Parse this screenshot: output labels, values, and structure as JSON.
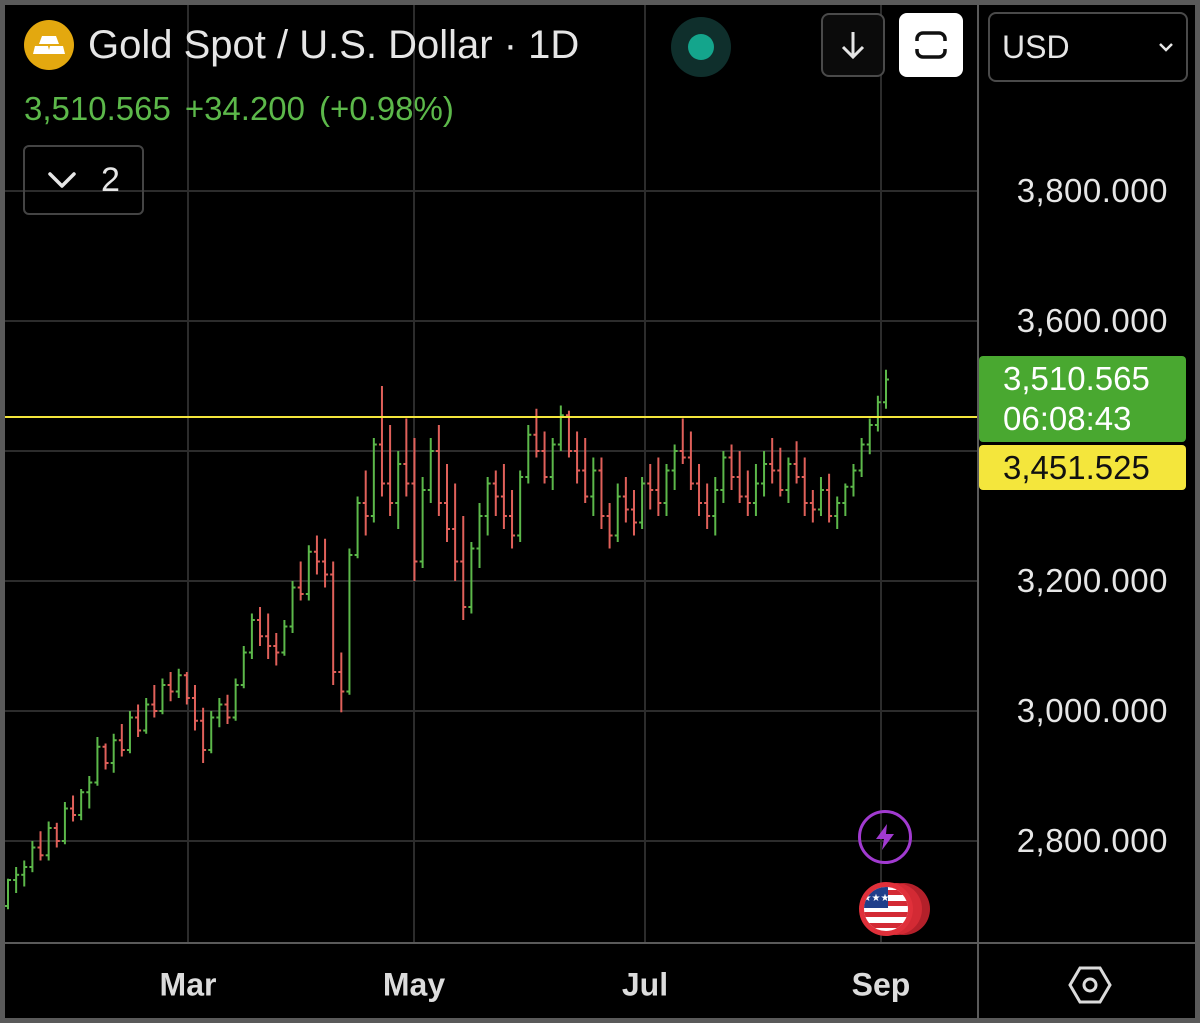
{
  "header": {
    "symbol_icon": "gold-bars-icon",
    "title": "Gold Spot / U.S. Dollar · 1D",
    "last_price": "3,510.565",
    "change": "+34.200",
    "change_pct": "(+0.98%)",
    "indicators_count": "2",
    "currency": "USD",
    "live_indicator_color": "#14a58c"
  },
  "toolbar": {
    "download_icon": "arrow-down-icon",
    "fit_icon": "fit-screen-icon",
    "settings_icon": "settings-hexagon-icon"
  },
  "price_tags": {
    "last_price": "3,510.565",
    "countdown": "06:08:43",
    "level": "3,451.525"
  },
  "colors": {
    "up": "#5cb84a",
    "down": "#e0605a",
    "level_line": "#f4e63c",
    "last_price_bg": "#49a830"
  },
  "chart_data": {
    "type": "ohlc",
    "x_ticks": [
      "Mar",
      "May",
      "Jul",
      "Sep"
    ],
    "y_ticks": [
      "2,800.000",
      "3,000.000",
      "3,200.000",
      "3,600.000",
      "3,800.000"
    ],
    "ylim": [
      2665,
      3890
    ],
    "horizontal_line": 3451.525,
    "grid": true,
    "series": [
      {
        "bars": [
          [
            2700,
            2742,
            2695,
            2740
          ],
          [
            2740,
            2760,
            2720,
            2748
          ],
          [
            2748,
            2770,
            2730,
            2760
          ],
          [
            2760,
            2800,
            2752,
            2790
          ],
          [
            2790,
            2815,
            2770,
            2778
          ],
          [
            2778,
            2830,
            2770,
            2820
          ],
          [
            2820,
            2828,
            2790,
            2800
          ],
          [
            2800,
            2860,
            2795,
            2850
          ],
          [
            2850,
            2870,
            2830,
            2840
          ],
          [
            2840,
            2880,
            2832,
            2875
          ],
          [
            2875,
            2900,
            2850,
            2890
          ],
          [
            2890,
            2960,
            2885,
            2945
          ],
          [
            2945,
            2950,
            2910,
            2920
          ],
          [
            2920,
            2965,
            2905,
            2955
          ],
          [
            2955,
            2980,
            2930,
            2940
          ],
          [
            2940,
            3000,
            2935,
            2990
          ],
          [
            2990,
            3010,
            2960,
            2970
          ],
          [
            2970,
            3020,
            2965,
            3010
          ],
          [
            3010,
            3040,
            2990,
            3000
          ],
          [
            3000,
            3050,
            2995,
            3040
          ],
          [
            3040,
            3060,
            3015,
            3030
          ],
          [
            3030,
            3065,
            3020,
            3055
          ],
          [
            3055,
            3060,
            3010,
            3020
          ],
          [
            3020,
            3040,
            2970,
            2985
          ],
          [
            2985,
            3005,
            2920,
            2940
          ],
          [
            2940,
            3000,
            2935,
            2990
          ],
          [
            2990,
            3020,
            2975,
            3010
          ],
          [
            3010,
            3025,
            2980,
            2990
          ],
          [
            2990,
            3050,
            2985,
            3040
          ],
          [
            3040,
            3100,
            3035,
            3090
          ],
          [
            3090,
            3150,
            3080,
            3140
          ],
          [
            3140,
            3160,
            3100,
            3115
          ],
          [
            3115,
            3150,
            3080,
            3100
          ],
          [
            3100,
            3120,
            3070,
            3090
          ],
          [
            3090,
            3140,
            3085,
            3130
          ],
          [
            3130,
            3200,
            3120,
            3190
          ],
          [
            3190,
            3230,
            3170,
            3180
          ],
          [
            3180,
            3255,
            3170,
            3245
          ],
          [
            3245,
            3270,
            3210,
            3230
          ],
          [
            3230,
            3265,
            3190,
            3210
          ],
          [
            3210,
            3230,
            3040,
            3060
          ],
          [
            3060,
            3090,
            2998,
            3030
          ],
          [
            3030,
            3250,
            3025,
            3240
          ],
          [
            3240,
            3330,
            3235,
            3320
          ],
          [
            3320,
            3370,
            3270,
            3300
          ],
          [
            3300,
            3420,
            3290,
            3410
          ],
          [
            3410,
            3500,
            3330,
            3350
          ],
          [
            3350,
            3440,
            3300,
            3320
          ],
          [
            3320,
            3400,
            3280,
            3380
          ],
          [
            3380,
            3450,
            3330,
            3350
          ],
          [
            3350,
            3420,
            3200,
            3230
          ],
          [
            3230,
            3360,
            3220,
            3340
          ],
          [
            3340,
            3420,
            3320,
            3400
          ],
          [
            3400,
            3440,
            3300,
            3320
          ],
          [
            3320,
            3380,
            3260,
            3280
          ],
          [
            3280,
            3350,
            3200,
            3230
          ],
          [
            3230,
            3300,
            3140,
            3160
          ],
          [
            3160,
            3260,
            3150,
            3250
          ],
          [
            3250,
            3320,
            3220,
            3300
          ],
          [
            3300,
            3360,
            3270,
            3350
          ],
          [
            3350,
            3370,
            3300,
            3330
          ],
          [
            3330,
            3380,
            3280,
            3300
          ],
          [
            3300,
            3340,
            3250,
            3270
          ],
          [
            3270,
            3370,
            3260,
            3360
          ],
          [
            3360,
            3440,
            3350,
            3425
          ],
          [
            3425,
            3465,
            3390,
            3400
          ],
          [
            3400,
            3430,
            3350,
            3360
          ],
          [
            3360,
            3420,
            3340,
            3410
          ],
          [
            3410,
            3470,
            3400,
            3455
          ],
          [
            3455,
            3462,
            3390,
            3400
          ],
          [
            3400,
            3430,
            3350,
            3370
          ],
          [
            3370,
            3420,
            3320,
            3330
          ],
          [
            3330,
            3390,
            3300,
            3370
          ],
          [
            3370,
            3390,
            3280,
            3300
          ],
          [
            3300,
            3320,
            3250,
            3270
          ],
          [
            3270,
            3350,
            3260,
            3330
          ],
          [
            3330,
            3360,
            3290,
            3310
          ],
          [
            3310,
            3340,
            3270,
            3290
          ],
          [
            3290,
            3360,
            3280,
            3350
          ],
          [
            3350,
            3380,
            3310,
            3340
          ],
          [
            3340,
            3390,
            3300,
            3320
          ],
          [
            3320,
            3380,
            3300,
            3370
          ],
          [
            3370,
            3410,
            3340,
            3400
          ],
          [
            3400,
            3450,
            3380,
            3390
          ],
          [
            3390,
            3430,
            3340,
            3350
          ],
          [
            3350,
            3380,
            3300,
            3320
          ],
          [
            3320,
            3350,
            3280,
            3300
          ],
          [
            3300,
            3360,
            3270,
            3340
          ],
          [
            3340,
            3400,
            3320,
            3390
          ],
          [
            3390,
            3410,
            3340,
            3360
          ],
          [
            3360,
            3400,
            3320,
            3330
          ],
          [
            3330,
            3370,
            3300,
            3320
          ],
          [
            3320,
            3380,
            3300,
            3350
          ],
          [
            3350,
            3400,
            3330,
            3380
          ],
          [
            3380,
            3420,
            3350,
            3370
          ],
          [
            3370,
            3405,
            3330,
            3340
          ],
          [
            3340,
            3390,
            3320,
            3380
          ],
          [
            3380,
            3415,
            3350,
            3360
          ],
          [
            3360,
            3390,
            3300,
            3320
          ],
          [
            3320,
            3340,
            3290,
            3310
          ],
          [
            3310,
            3360,
            3300,
            3340
          ],
          [
            3340,
            3365,
            3290,
            3300
          ],
          [
            3300,
            3330,
            3280,
            3320
          ],
          [
            3320,
            3350,
            3300,
            3345
          ],
          [
            3345,
            3380,
            3330,
            3370
          ],
          [
            3370,
            3420,
            3360,
            3410
          ],
          [
            3410,
            3450,
            3395,
            3440
          ],
          [
            3440,
            3485,
            3430,
            3475
          ],
          [
            3475,
            3525,
            3465,
            3510
          ]
        ]
      }
    ]
  }
}
